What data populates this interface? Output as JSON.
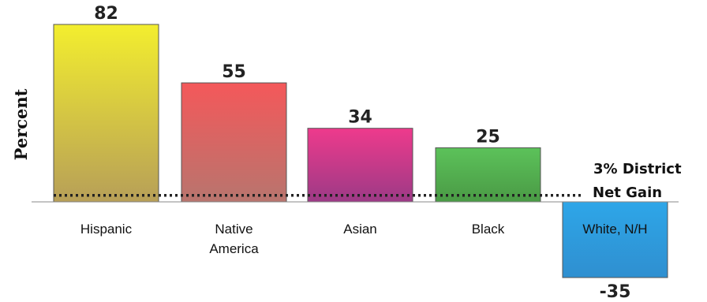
{
  "chart_data": {
    "type": "bar",
    "title": "",
    "xlabel": "",
    "ylabel": "Percent",
    "categories": [
      "Hispanic",
      "Native America",
      "Asian",
      "Black",
      "White, N/H"
    ],
    "category_lines": [
      [
        "Hispanic"
      ],
      [
        "Native",
        "America"
      ],
      [
        "Asian"
      ],
      [
        "Black"
      ],
      [
        "White, N/H"
      ]
    ],
    "values": [
      82,
      55,
      34,
      25,
      -35
    ],
    "value_labels": [
      "82",
      "55",
      "34",
      "25",
      "-35"
    ],
    "ylim": [
      -38,
      88
    ],
    "grid": false,
    "reference_line": {
      "value": 3,
      "style": "dotted",
      "label_lines": [
        "3% District",
        "Net Gain"
      ]
    },
    "colors": {
      "Hispanic": [
        "#f3ee2e",
        "#b79f58"
      ],
      "Native America": [
        "#f4585a",
        "#b8756e"
      ],
      "Asian": [
        "#ee3a8c",
        "#9c3a86"
      ],
      "Black": [
        "#5cc25a",
        "#4a9a45"
      ],
      "White, N/H": [
        "#2ea6e8",
        "#2f8fd0"
      ]
    }
  }
}
